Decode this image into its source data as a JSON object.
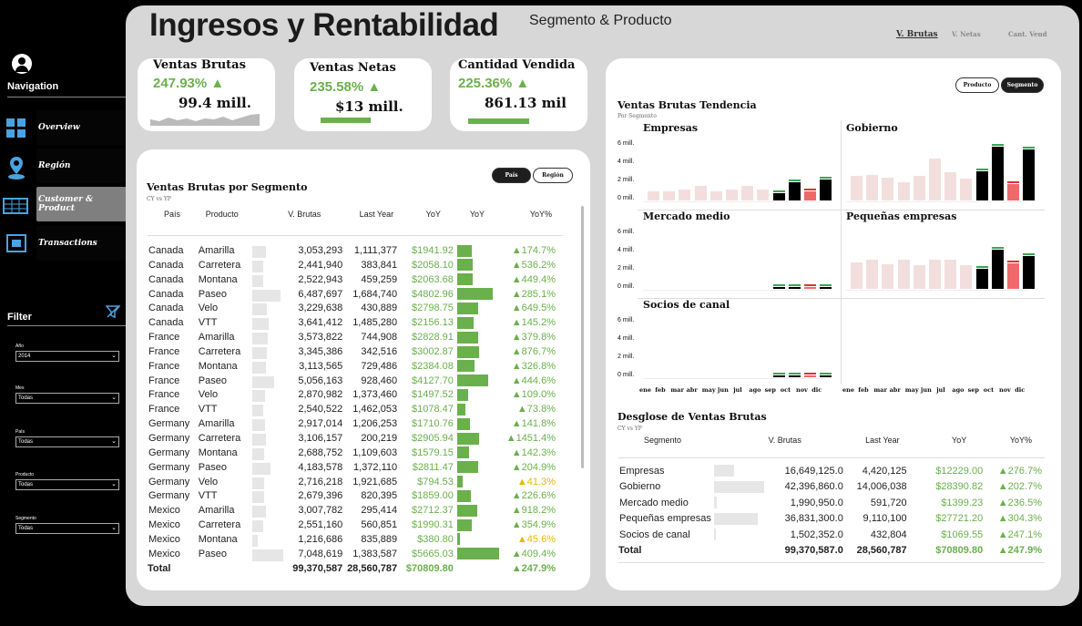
{
  "header": {
    "title": "Ingresos y Rentabilidad",
    "subtitle": "Segmento & Producto",
    "tabs": [
      "V. Brutas",
      "V. Netas",
      "Cant. Vend"
    ]
  },
  "nav": {
    "title": "Navigation",
    "items": [
      {
        "label": "Overview",
        "icon": "grid-icon"
      },
      {
        "label": "Región",
        "icon": "map-pin-icon"
      },
      {
        "label": "Customer & Product",
        "icon": "table-icon"
      },
      {
        "label": "Transactions",
        "icon": "transactions-icon"
      }
    ]
  },
  "filter": {
    "title": "Filter",
    "fields": [
      {
        "label": "Año",
        "value": "2014"
      },
      {
        "label": "Mes",
        "value": "Todas"
      },
      {
        "label": "País",
        "value": "Todas"
      },
      {
        "label": "Producto",
        "value": "Todas"
      },
      {
        "label": "Segmento",
        "value": "Todas"
      }
    ]
  },
  "kpis": [
    {
      "name": "Ventas Brutas",
      "pct": "247.93% ▲",
      "value": "99.4 mill."
    },
    {
      "name": "Ventas Netas",
      "pct": "235.58% ▲",
      "value": "$13 mill."
    },
    {
      "name": "Cantidad Vendida",
      "pct": "225.36% ▲",
      "value": "861.13 mil"
    }
  ],
  "segtable": {
    "title": "Ventas Brutas por Segmento",
    "sub": "CY vs YP",
    "pill_a": "País",
    "pill_b": "Región",
    "headers": [
      "País",
      "Producto",
      "V. Brutas",
      "Last Year",
      "YoY",
      "YoY",
      "YoY%"
    ],
    "rows": [
      [
        "Canada",
        "Amarilla",
        "3,053,293",
        "1,111,377",
        "$1941.92",
        "▲174.7%"
      ],
      [
        "Canada",
        "Carretera",
        "2,441,940",
        "383,841",
        "$2058.10",
        "▲536.2%"
      ],
      [
        "Canada",
        "Montana",
        "2,522,943",
        "459,259",
        "$2063.68",
        "▲449.4%"
      ],
      [
        "Canada",
        "Paseo",
        "6,487,697",
        "1,684,740",
        "$4802.96",
        "▲285.1%"
      ],
      [
        "Canada",
        "Velo",
        "3,229,638",
        "430,889",
        "$2798.75",
        "▲649.5%"
      ],
      [
        "Canada",
        "VTT",
        "3,641,412",
        "1,485,280",
        "$2156.13",
        "▲145.2%"
      ],
      [
        "France",
        "Amarilla",
        "3,573,822",
        "744,908",
        "$2828.91",
        "▲379.8%"
      ],
      [
        "France",
        "Carretera",
        "3,345,386",
        "342,516",
        "$3002.87",
        "▲876.7%"
      ],
      [
        "France",
        "Montana",
        "3,113,565",
        "729,486",
        "$2384.08",
        "▲326.8%"
      ],
      [
        "France",
        "Paseo",
        "5,056,163",
        "928,460",
        "$4127.70",
        "▲444.6%"
      ],
      [
        "France",
        "Velo",
        "2,870,982",
        "1,373,460",
        "$1497.52",
        "▲109.0%"
      ],
      [
        "France",
        "VTT",
        "2,540,522",
        "1,462,053",
        "$1078.47",
        "▲73.8%"
      ],
      [
        "Germany",
        "Amarilla",
        "2,917,014",
        "1,206,253",
        "$1710.76",
        "▲141.8%"
      ],
      [
        "Germany",
        "Carretera",
        "3,106,157",
        "200,219",
        "$2905.94",
        "▲1451.4%"
      ],
      [
        "Germany",
        "Montana",
        "2,688,752",
        "1,109,603",
        "$1579.15",
        "▲142.3%"
      ],
      [
        "Germany",
        "Paseo",
        "4,183,578",
        "1,372,110",
        "$2811.47",
        "▲204.9%"
      ],
      [
        "Germany",
        "Velo",
        "2,716,218",
        "1,921,685",
        "$794.53",
        "▲41.3%"
      ],
      [
        "Germany",
        "VTT",
        "2,679,396",
        "820,395",
        "$1859.00",
        "▲226.6%"
      ],
      [
        "Mexico",
        "Amarilla",
        "3,007,782",
        "295,414",
        "$2712.37",
        "▲918.2%"
      ],
      [
        "Mexico",
        "Carretera",
        "2,551,160",
        "560,851",
        "$1990.31",
        "▲354.9%"
      ],
      [
        "Mexico",
        "Montana",
        "1,216,686",
        "835,889",
        "$380.80",
        "▲45.6%"
      ],
      [
        "Mexico",
        "Paseo",
        "7,048,619",
        "1,383,587",
        "$5665.03",
        "▲409.4%"
      ]
    ],
    "total": [
      "Total",
      "99,370,587",
      "28,560,787",
      "$70809.80",
      "▲247.9%"
    ]
  },
  "trend": {
    "title": "Ventas Brutas Tendencia",
    "sub": "Por Segmento",
    "pill_a": "Producto",
    "pill_b": "Segmento",
    "axis": [
      "6 mill.",
      "4 mill.",
      "2 mill.",
      "0 mill."
    ],
    "months": [
      "ene",
      "feb",
      "mar",
      "abr",
      "may",
      "jun",
      "jul",
      "ago",
      "sep",
      "oct",
      "nov",
      "dic"
    ],
    "panels": [
      {
        "name": "Empresas",
        "cy": [
          0,
          0,
          0,
          0,
          0,
          0,
          0,
          0,
          0.8,
          2.0,
          1.0,
          2.3
        ],
        "ly": [
          1.0,
          1.0,
          1.2,
          1.6,
          1.0,
          1.2,
          1.6,
          1.2,
          0,
          0,
          0,
          0
        ]
      },
      {
        "name": "Gobierno",
        "cy": [
          0,
          0,
          0,
          0,
          0,
          0,
          0,
          0,
          3.4,
          6.3,
          1.9,
          6.0
        ],
        "ly": [
          2.9,
          3.0,
          2.7,
          2.1,
          2.9,
          4.9,
          3.3,
          2.6,
          0,
          0,
          0,
          0
        ]
      },
      {
        "name": "Mercado medio",
        "cy": [
          0,
          0,
          0,
          0,
          0,
          0,
          0,
          0,
          0.1,
          0.2,
          0.1,
          0.2
        ],
        "ly": [
          0,
          0,
          0,
          0,
          0,
          0,
          0,
          0,
          0,
          0,
          0,
          0
        ]
      },
      {
        "name": "Pequeñas empresas",
        "cy": [
          0,
          0,
          0,
          0,
          0,
          0,
          0,
          0,
          2.2,
          4.3,
          2.8,
          3.6
        ],
        "ly": [
          2.9,
          3.2,
          2.7,
          3.2,
          2.6,
          3.2,
          3.2,
          2.6,
          0,
          0,
          0,
          0
        ]
      },
      {
        "name": "Socios de canal",
        "cy": [
          0,
          0,
          0,
          0,
          0,
          0,
          0,
          0,
          0.1,
          0.1,
          0.1,
          0.1
        ],
        "ly": [
          0,
          0,
          0,
          0,
          0,
          0,
          0,
          0,
          0,
          0,
          0,
          0
        ]
      }
    ]
  },
  "desglose": {
    "title": "Desglose de Ventas Brutas",
    "sub": "CY vs YP",
    "headers": [
      "Segmento",
      "V. Brutas",
      "Last Year",
      "YoY",
      "YoY%"
    ],
    "rows": [
      [
        "Empresas",
        "16,649,125.0",
        "4,420,125",
        "$12229.00",
        "▲276.7%"
      ],
      [
        "Gobierno",
        "42,396,860.0",
        "14,006,038",
        "$28390.82",
        "▲202.7%"
      ],
      [
        "Mercado medio",
        "1,990,950.0",
        "591,720",
        "$1399.23",
        "▲236.5%"
      ],
      [
        "Pequeñas empresas",
        "36,831,300.0",
        "9,110,100",
        "$27721.20",
        "▲304.3%"
      ],
      [
        "Socios de canal",
        "1,502,352.0",
        "432,804",
        "$1069.55",
        "▲247.1%"
      ]
    ],
    "total": [
      "Total",
      "99,370,587.0",
      "28,560,787",
      "$70809.80",
      "▲247.9%"
    ]
  }
}
